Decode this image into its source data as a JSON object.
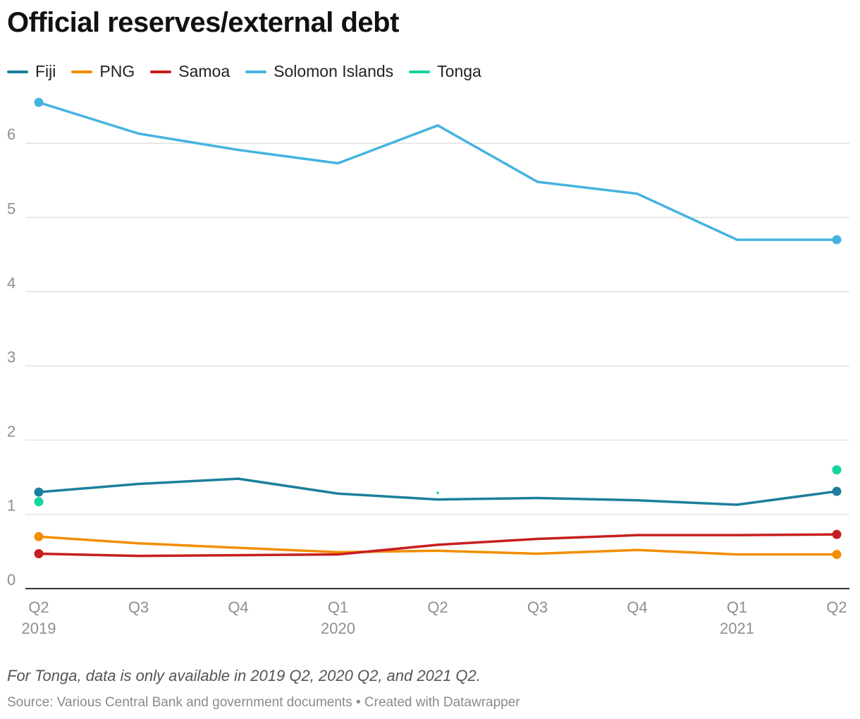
{
  "title": "Official reserves/external debt",
  "note": "For Tonga, data is only available in 2019 Q2, 2020 Q2, and 2021 Q2.",
  "source": "Source: Various Central Bank and government documents • Created with Datawrapper",
  "chart_data": {
    "type": "line",
    "title": "Official reserves/external debt",
    "xlabel": "",
    "ylabel": "",
    "ylim": [
      0,
      6.6
    ],
    "yticks": [
      0,
      1,
      2,
      3,
      4,
      5,
      6
    ],
    "grid": true,
    "legend_position": "top-left",
    "x": [
      "2019 Q2",
      "2019 Q3",
      "2019 Q4",
      "2020 Q1",
      "2020 Q2",
      "2020 Q3",
      "2020 Q4",
      "2021 Q1",
      "2021 Q2"
    ],
    "x_tick_labels": [
      {
        "quarter": "Q2",
        "year": "2019"
      },
      {
        "quarter": "Q3",
        "year": ""
      },
      {
        "quarter": "Q4",
        "year": ""
      },
      {
        "quarter": "Q1",
        "year": "2020"
      },
      {
        "quarter": "Q2",
        "year": ""
      },
      {
        "quarter": "Q3",
        "year": ""
      },
      {
        "quarter": "Q4",
        "year": ""
      },
      {
        "quarter": "Q1",
        "year": "2021"
      },
      {
        "quarter": "Q2",
        "year": ""
      }
    ],
    "series": [
      {
        "name": "Fiji",
        "color": "#1d7f9d",
        "values": [
          1.3,
          1.41,
          1.48,
          1.28,
          1.2,
          1.22,
          1.19,
          1.13,
          1.31
        ]
      },
      {
        "name": "PNG",
        "color": "#f28e00",
        "values": [
          0.7,
          0.61,
          0.55,
          0.49,
          0.51,
          0.47,
          0.52,
          0.46,
          0.46
        ]
      },
      {
        "name": "Samoa",
        "color": "#c71f1f",
        "values": [
          0.47,
          0.44,
          0.45,
          0.46,
          0.59,
          0.67,
          0.72,
          0.72,
          0.73
        ]
      },
      {
        "name": "Solomon Islands",
        "color": "#45b3e0",
        "values": [
          6.55,
          6.13,
          5.91,
          5.73,
          6.24,
          5.48,
          5.32,
          4.7,
          4.7
        ]
      },
      {
        "name": "Tonga",
        "color": "#14d3a0",
        "values": [
          1.17,
          null,
          null,
          null,
          1.29,
          null,
          null,
          null,
          1.6
        ]
      }
    ]
  }
}
